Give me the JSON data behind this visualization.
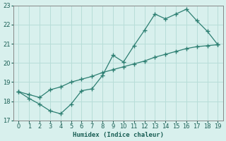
{
  "xlabel": "Humidex (Indice chaleur)",
  "x": [
    0,
    1,
    2,
    3,
    4,
    5,
    6,
    7,
    8,
    9,
    10,
    11,
    12,
    13,
    14,
    15,
    16,
    17,
    18,
    19
  ],
  "y_jagged": [
    18.5,
    18.15,
    17.85,
    17.5,
    17.35,
    17.85,
    18.55,
    18.65,
    19.35,
    20.4,
    20.05,
    20.9,
    21.7,
    22.55,
    22.3,
    22.55,
    22.8,
    22.2,
    21.65,
    20.95
  ],
  "y_trend": [
    18.5,
    18.35,
    18.2,
    18.6,
    18.75,
    19.0,
    19.15,
    19.3,
    19.5,
    19.65,
    19.8,
    19.95,
    20.1,
    20.3,
    20.45,
    20.6,
    20.75,
    20.85,
    20.9,
    20.95
  ],
  "line_color": "#2d7f72",
  "background_color": "#d8f0ed",
  "grid_color": "#b8ddd8",
  "ylim": [
    17,
    23
  ],
  "xlim": [
    -0.5,
    19.5
  ],
  "yticks": [
    17,
    18,
    19,
    20,
    21,
    22,
    23
  ],
  "xticks": [
    0,
    1,
    2,
    3,
    4,
    5,
    6,
    7,
    8,
    9,
    10,
    11,
    12,
    13,
    14,
    15,
    16,
    17,
    18,
    19
  ]
}
